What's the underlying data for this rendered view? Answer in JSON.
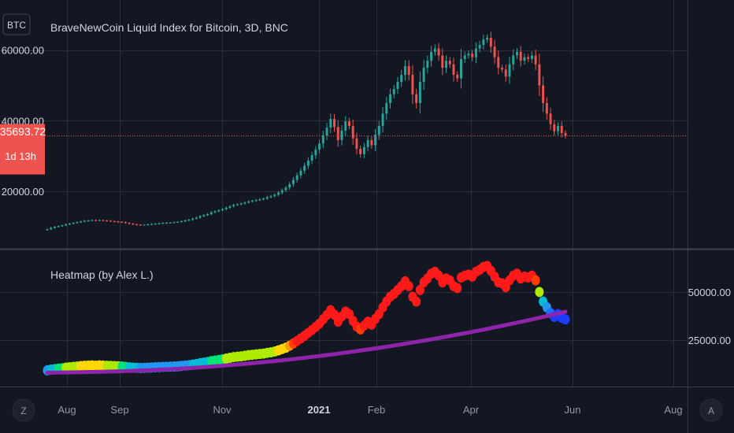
{
  "symbol_badge": "BTC",
  "current_price": "35693.72",
  "countdown": "1d 13h",
  "corner_left": "Z",
  "corner_right": "A",
  "colors": {
    "background": "#131722",
    "grid": "#2a2e39",
    "up": "#26a69a",
    "down": "#ef5350",
    "price_line": "#ef5350",
    "ma": "#8e24aa"
  },
  "chart_data": [
    {
      "type": "candlestick",
      "title": "BraveNewCoin Liquid Index for Bitcoin, 3D, BNC",
      "y_ticks": [
        "60000.00",
        "40000.00",
        "20000.00"
      ],
      "y_tick_values": [
        60000,
        40000,
        20000
      ],
      "ylim": [
        5000,
        72000
      ],
      "current_price": 35693.72,
      "grid": true,
      "closes": [
        9200,
        9600,
        9900,
        10100,
        10300,
        10600,
        10800,
        11000,
        11200,
        11400,
        11600,
        11700,
        11800,
        11650,
        11800,
        11700,
        11600,
        11500,
        11400,
        11300,
        11200,
        11000,
        10800,
        10600,
        10500,
        10450,
        10500,
        10600,
        10700,
        10800,
        10900,
        11000,
        11050,
        11100,
        11200,
        11300,
        11500,
        11700,
        11900,
        12200,
        12500,
        12900,
        13200,
        13500,
        14000,
        14300,
        14600,
        14900,
        15300,
        15700,
        16100,
        16300,
        16500,
        16800,
        17100,
        17300,
        17500,
        17700,
        17900,
        18300,
        18600,
        19000,
        19600,
        20300,
        21000,
        22000,
        23200,
        24500,
        25800,
        27200,
        28700,
        30200,
        31800,
        33500,
        35800,
        38000,
        40500,
        38200,
        34500,
        37200,
        39800,
        38500,
        35000,
        32000,
        30500,
        32500,
        34500,
        33000,
        36000,
        38500,
        42000,
        45000,
        47500,
        49000,
        51000,
        53000,
        55500,
        53000,
        47500,
        45000,
        51000,
        55000,
        57000,
        59500,
        60500,
        58500,
        55000,
        57000,
        56000,
        53000,
        52000,
        57500,
        58500,
        59000,
        58000,
        60500,
        61500,
        63000,
        63500,
        61000,
        58000,
        55000,
        54500,
        52500,
        56000,
        58500,
        59500,
        57000,
        58000,
        57500,
        58500,
        56000,
        50000,
        45000,
        42000,
        39000,
        37000,
        38500,
        36500,
        35700
      ]
    },
    {
      "type": "scatter",
      "title": "Heatmap (by Alex L.)",
      "y_ticks": [
        "50000.00",
        "25000.00"
      ],
      "y_tick_values": [
        50000,
        25000
      ],
      "ylim": [
        2000,
        70000
      ],
      "ma_series": [
        8000,
        8100,
        8200,
        8350,
        8500,
        8700,
        8950,
        9250,
        9600,
        10000,
        10450,
        10950,
        11500,
        12100,
        12750,
        13450,
        14200,
        15000,
        15850,
        16750,
        17700,
        18700,
        19750,
        20850,
        22000,
        23200,
        24450,
        25750,
        27100,
        28500,
        29950,
        31450,
        33000,
        34600,
        36250,
        37950,
        39700
      ],
      "x_ticks": [
        "Aug",
        "Sep",
        "Nov",
        "2021",
        "Feb",
        "Apr",
        "Jun",
        "Aug"
      ],
      "x_tick_bold": [
        false,
        false,
        false,
        true,
        false,
        false,
        false,
        false
      ],
      "grid": true
    }
  ]
}
